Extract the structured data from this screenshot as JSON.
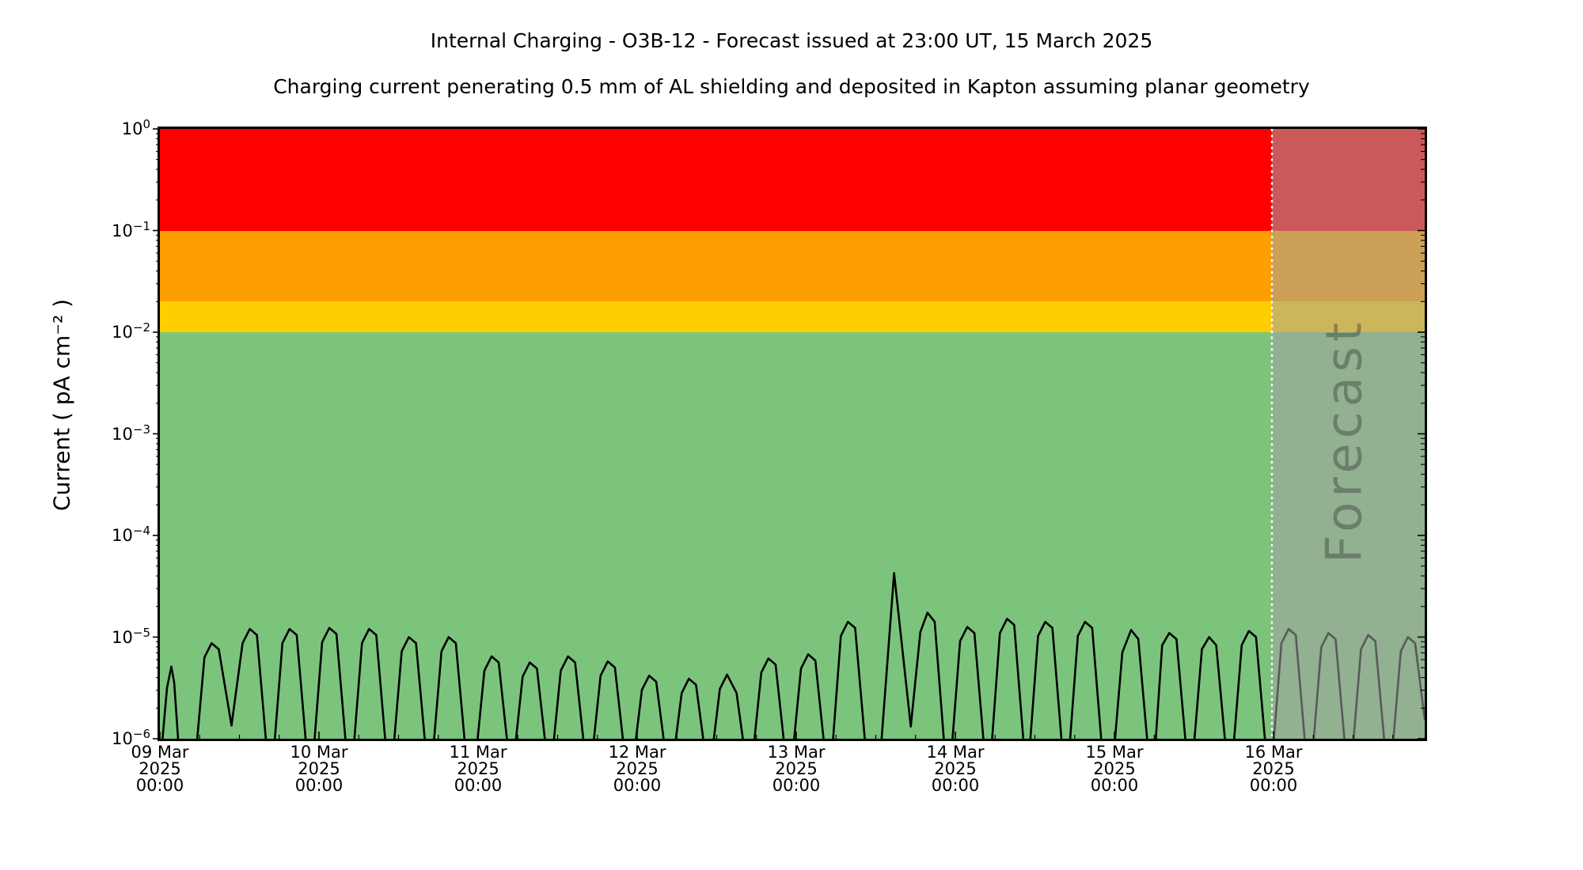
{
  "chart_data": {
    "type": "line",
    "title": "Internal Charging - O3B-12 - Forecast issued at 23:00 UT, 15 March 2025",
    "subtitle": "Charging current penerating 0.5 mm of AL shielding and deposited in Kapton assuming planar geometry",
    "ylabel": "Current ( pA cm⁻² )",
    "y_axis": {
      "scale": "log",
      "tick_base": "10",
      "tick_exponents": [
        0,
        -1,
        -2,
        -3,
        -4,
        -5,
        -6
      ],
      "ylim_log10": [
        -6,
        0
      ],
      "minor_ticks": "log decades 2-9"
    },
    "x_axis": {
      "span_days": 7.95,
      "minor_tick_hours": 6,
      "tick_labels": [
        {
          "l1": "09 Mar",
          "l2": "2025",
          "l3": "00:00"
        },
        {
          "l1": "10 Mar",
          "l2": "2025",
          "l3": "00:00"
        },
        {
          "l1": "11 Mar",
          "l2": "2025",
          "l3": "00:00"
        },
        {
          "l1": "12 Mar",
          "l2": "2025",
          "l3": "00:00"
        },
        {
          "l1": "13 Mar",
          "l2": "2025",
          "l3": "00:00"
        },
        {
          "l1": "14 Mar",
          "l2": "2025",
          "l3": "00:00"
        },
        {
          "l1": "15 Mar",
          "l2": "2025",
          "l3": "00:00"
        },
        {
          "l1": "16 Mar",
          "l2": "2025",
          "l3": "00:00"
        }
      ]
    },
    "bands": [
      {
        "name": "red-alert-band",
        "log10_from": -1.0,
        "log10_to": 0.0,
        "color": "#ff0000"
      },
      {
        "name": "orange-alert-band",
        "log10_from": -1.699,
        "log10_to": -1.0,
        "color": "#ff9e00"
      },
      {
        "name": "yellow-alert-band",
        "log10_from": -2.0,
        "log10_to": -1.699,
        "color": "#ffce00"
      },
      {
        "name": "green-safe-band",
        "log10_from": -6.0,
        "log10_to": -2.0,
        "color": "#7cc47c"
      }
    ],
    "forecast": {
      "label": "Forecast",
      "start_day": 6.99,
      "divider": "white-dotted-vertical-line",
      "overlay_color": "rgba(163,163,163,0.55)"
    },
    "series": [
      {
        "name": "charging-current",
        "color": "#000000",
        "units": "pA cm^-2",
        "points_day_log10": [
          [
            0.0,
            -6.3
          ],
          [
            0.045,
            -5.5
          ],
          [
            0.072,
            -5.29
          ],
          [
            0.09,
            -5.45
          ],
          [
            0.13,
            -6.35
          ],
          [
            0.215,
            -6.35
          ],
          [
            0.28,
            -5.2
          ],
          [
            0.325,
            -5.06
          ],
          [
            0.37,
            -5.12
          ],
          [
            0.45,
            -5.87
          ],
          [
            0.52,
            -5.06
          ],
          [
            0.565,
            -4.92
          ],
          [
            0.61,
            -4.98
          ],
          [
            0.685,
            -6.35
          ],
          [
            0.705,
            -6.35
          ],
          [
            0.77,
            -5.06
          ],
          [
            0.815,
            -4.92
          ],
          [
            0.86,
            -4.98
          ],
          [
            0.935,
            -6.35
          ],
          [
            0.955,
            -6.35
          ],
          [
            1.02,
            -5.05
          ],
          [
            1.065,
            -4.91
          ],
          [
            1.11,
            -4.97
          ],
          [
            1.185,
            -6.35
          ],
          [
            1.205,
            -6.35
          ],
          [
            1.27,
            -5.06
          ],
          [
            1.315,
            -4.92
          ],
          [
            1.36,
            -4.98
          ],
          [
            1.435,
            -6.35
          ],
          [
            1.455,
            -6.35
          ],
          [
            1.52,
            -5.14
          ],
          [
            1.565,
            -5.0
          ],
          [
            1.61,
            -5.06
          ],
          [
            1.685,
            -6.35
          ],
          [
            1.705,
            -6.35
          ],
          [
            1.77,
            -5.14
          ],
          [
            1.815,
            -5.0
          ],
          [
            1.86,
            -5.06
          ],
          [
            1.935,
            -6.35
          ],
          [
            1.975,
            -6.35
          ],
          [
            2.04,
            -5.33
          ],
          [
            2.085,
            -5.19
          ],
          [
            2.13,
            -5.25
          ],
          [
            2.205,
            -6.35
          ],
          [
            2.215,
            -6.35
          ],
          [
            2.28,
            -5.39
          ],
          [
            2.325,
            -5.25
          ],
          [
            2.37,
            -5.31
          ],
          [
            2.445,
            -6.35
          ],
          [
            2.455,
            -6.35
          ],
          [
            2.52,
            -5.33
          ],
          [
            2.565,
            -5.19
          ],
          [
            2.61,
            -5.25
          ],
          [
            2.685,
            -6.35
          ],
          [
            2.705,
            -6.35
          ],
          [
            2.77,
            -5.38
          ],
          [
            2.815,
            -5.24
          ],
          [
            2.86,
            -5.3
          ],
          [
            2.935,
            -6.35
          ],
          [
            2.965,
            -6.35
          ],
          [
            3.03,
            -5.52
          ],
          [
            3.075,
            -5.38
          ],
          [
            3.12,
            -5.44
          ],
          [
            3.195,
            -6.35
          ],
          [
            3.215,
            -6.35
          ],
          [
            3.28,
            -5.55
          ],
          [
            3.325,
            -5.41
          ],
          [
            3.37,
            -5.47
          ],
          [
            3.445,
            -6.35
          ],
          [
            3.455,
            -6.35
          ],
          [
            3.52,
            -5.51
          ],
          [
            3.565,
            -5.37
          ],
          [
            3.625,
            -5.55
          ],
          [
            3.695,
            -6.35
          ],
          [
            3.715,
            -6.35
          ],
          [
            3.78,
            -5.35
          ],
          [
            3.825,
            -5.21
          ],
          [
            3.87,
            -5.27
          ],
          [
            3.945,
            -6.35
          ],
          [
            3.965,
            -6.35
          ],
          [
            4.03,
            -5.31
          ],
          [
            4.075,
            -5.17
          ],
          [
            4.12,
            -5.23
          ],
          [
            4.195,
            -6.35
          ],
          [
            4.215,
            -6.35
          ],
          [
            4.28,
            -4.99
          ],
          [
            4.325,
            -4.85
          ],
          [
            4.37,
            -4.91
          ],
          [
            4.45,
            -6.35
          ],
          [
            4.52,
            -6.35
          ],
          [
            4.615,
            -4.37
          ],
          [
            4.72,
            -5.88
          ],
          [
            4.78,
            -4.95
          ],
          [
            4.825,
            -4.76
          ],
          [
            4.87,
            -4.85
          ],
          [
            4.945,
            -6.35
          ],
          [
            4.965,
            -6.35
          ],
          [
            5.03,
            -5.04
          ],
          [
            5.075,
            -4.9
          ],
          [
            5.12,
            -4.96
          ],
          [
            5.195,
            -6.35
          ],
          [
            5.215,
            -6.35
          ],
          [
            5.28,
            -4.96
          ],
          [
            5.325,
            -4.82
          ],
          [
            5.37,
            -4.88
          ],
          [
            5.445,
            -6.35
          ],
          [
            5.455,
            -6.35
          ],
          [
            5.52,
            -4.99
          ],
          [
            5.565,
            -4.85
          ],
          [
            5.61,
            -4.91
          ],
          [
            5.685,
            -6.35
          ],
          [
            5.705,
            -6.35
          ],
          [
            5.77,
            -4.99
          ],
          [
            5.815,
            -4.85
          ],
          [
            5.86,
            -4.91
          ],
          [
            5.935,
            -6.35
          ],
          [
            5.985,
            -6.35
          ],
          [
            6.05,
            -5.15
          ],
          [
            6.105,
            -4.93
          ],
          [
            6.15,
            -5.02
          ],
          [
            6.225,
            -6.35
          ],
          [
            6.245,
            -6.35
          ],
          [
            6.3,
            -5.08
          ],
          [
            6.345,
            -4.96
          ],
          [
            6.39,
            -5.02
          ],
          [
            6.465,
            -6.35
          ],
          [
            6.485,
            -6.35
          ],
          [
            6.55,
            -5.12
          ],
          [
            6.595,
            -5.0
          ],
          [
            6.64,
            -5.08
          ],
          [
            6.715,
            -6.35
          ],
          [
            6.735,
            -6.35
          ],
          [
            6.8,
            -5.08
          ],
          [
            6.845,
            -4.94
          ],
          [
            6.89,
            -5.0
          ],
          [
            6.965,
            -6.35
          ],
          [
            6.985,
            -6.35
          ],
          [
            7.05,
            -5.06
          ],
          [
            7.095,
            -4.92
          ],
          [
            7.14,
            -4.98
          ],
          [
            7.215,
            -6.35
          ],
          [
            7.235,
            -6.35
          ],
          [
            7.3,
            -5.1
          ],
          [
            7.345,
            -4.96
          ],
          [
            7.39,
            -5.02
          ],
          [
            7.465,
            -6.35
          ],
          [
            7.485,
            -6.35
          ],
          [
            7.55,
            -5.12
          ],
          [
            7.595,
            -4.98
          ],
          [
            7.64,
            -5.04
          ],
          [
            7.715,
            -6.35
          ],
          [
            7.735,
            -6.35
          ],
          [
            7.8,
            -5.14
          ],
          [
            7.845,
            -5.0
          ],
          [
            7.89,
            -5.06
          ],
          [
            7.95,
            -5.81
          ]
        ]
      }
    ],
    "legend": null,
    "grid": false
  }
}
